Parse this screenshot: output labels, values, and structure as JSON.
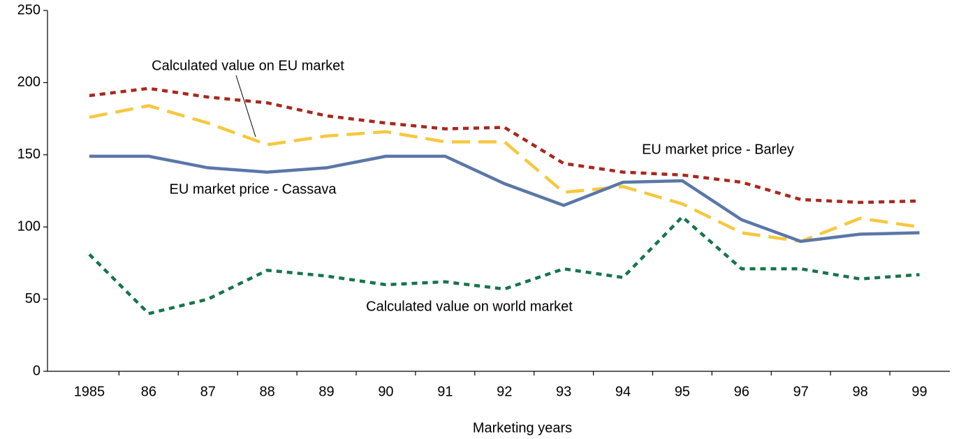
{
  "chart_data": {
    "type": "line",
    "x_label": "Marketing years",
    "categories": [
      "1985",
      "86",
      "87",
      "88",
      "89",
      "90",
      "91",
      "92",
      "93",
      "94",
      "95",
      "96",
      "97",
      "98",
      "99"
    ],
    "ylim": [
      0,
      250
    ],
    "yticks": [
      0,
      50,
      100,
      150,
      200,
      250
    ],
    "series": [
      {
        "name": "EU market price - Barley",
        "color": "#a8281e",
        "style": "dotted",
        "values": [
          191,
          196,
          190,
          186,
          177,
          172,
          168,
          169,
          144,
          138,
          136,
          131,
          119,
          117,
          118
        ]
      },
      {
        "name": "Calculated value on EU market",
        "color": "#f6c83e",
        "style": "dashed",
        "values": [
          176,
          184,
          172,
          157,
          163,
          166,
          159,
          159,
          124,
          128,
          116,
          96,
          90,
          106,
          100
        ]
      },
      {
        "name": "EU market price - Cassava",
        "color": "#5a77a8",
        "style": "solid",
        "values": [
          149,
          149,
          141,
          138,
          141,
          149,
          149,
          130,
          115,
          131,
          132,
          105,
          90,
          95,
          96
        ]
      },
      {
        "name": "Calculated value on world market",
        "color": "#16754a",
        "style": "dotted",
        "values": [
          81,
          40,
          50,
          70,
          66,
          60,
          62,
          57,
          71,
          65,
          107,
          71,
          71,
          64,
          67
        ]
      }
    ]
  }
}
